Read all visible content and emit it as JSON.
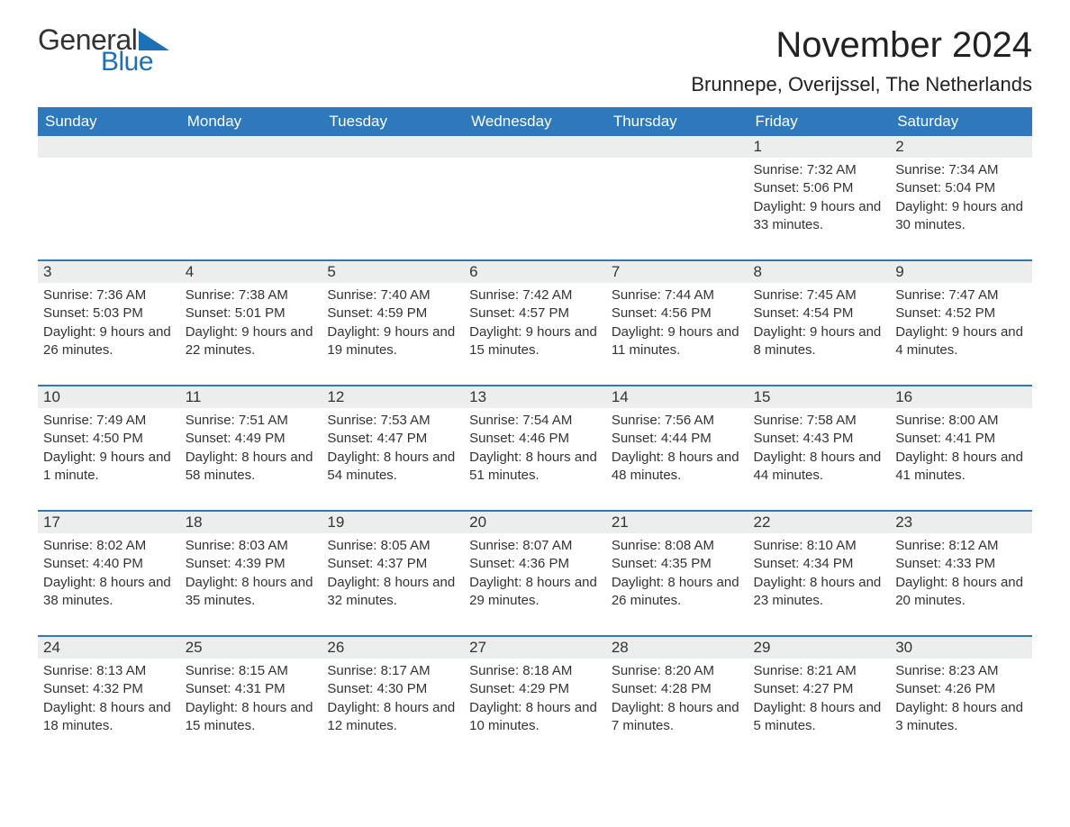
{
  "logo": {
    "text1": "General",
    "text2": "Blue",
    "tri_color": "#1d6fb8"
  },
  "header": {
    "month_title": "November 2024",
    "location": "Brunnepe, Overijssel, The Netherlands"
  },
  "colors": {
    "header_bg": "#2f78bb",
    "header_text": "#ffffff",
    "daynum_bg": "#eceded",
    "rule": "#2f78bb",
    "text": "#333333"
  },
  "daynames": [
    "Sunday",
    "Monday",
    "Tuesday",
    "Wednesday",
    "Thursday",
    "Friday",
    "Saturday"
  ],
  "layout": {
    "first_weekday_index": 5,
    "days_in_month": 30
  },
  "days": {
    "1": {
      "sunrise": "7:32 AM",
      "sunset": "5:06 PM",
      "daylight": "9 hours and 33 minutes."
    },
    "2": {
      "sunrise": "7:34 AM",
      "sunset": "5:04 PM",
      "daylight": "9 hours and 30 minutes."
    },
    "3": {
      "sunrise": "7:36 AM",
      "sunset": "5:03 PM",
      "daylight": "9 hours and 26 minutes."
    },
    "4": {
      "sunrise": "7:38 AM",
      "sunset": "5:01 PM",
      "daylight": "9 hours and 22 minutes."
    },
    "5": {
      "sunrise": "7:40 AM",
      "sunset": "4:59 PM",
      "daylight": "9 hours and 19 minutes."
    },
    "6": {
      "sunrise": "7:42 AM",
      "sunset": "4:57 PM",
      "daylight": "9 hours and 15 minutes."
    },
    "7": {
      "sunrise": "7:44 AM",
      "sunset": "4:56 PM",
      "daylight": "9 hours and 11 minutes."
    },
    "8": {
      "sunrise": "7:45 AM",
      "sunset": "4:54 PM",
      "daylight": "9 hours and 8 minutes."
    },
    "9": {
      "sunrise": "7:47 AM",
      "sunset": "4:52 PM",
      "daylight": "9 hours and 4 minutes."
    },
    "10": {
      "sunrise": "7:49 AM",
      "sunset": "4:50 PM",
      "daylight": "9 hours and 1 minute."
    },
    "11": {
      "sunrise": "7:51 AM",
      "sunset": "4:49 PM",
      "daylight": "8 hours and 58 minutes."
    },
    "12": {
      "sunrise": "7:53 AM",
      "sunset": "4:47 PM",
      "daylight": "8 hours and 54 minutes."
    },
    "13": {
      "sunrise": "7:54 AM",
      "sunset": "4:46 PM",
      "daylight": "8 hours and 51 minutes."
    },
    "14": {
      "sunrise": "7:56 AM",
      "sunset": "4:44 PM",
      "daylight": "8 hours and 48 minutes."
    },
    "15": {
      "sunrise": "7:58 AM",
      "sunset": "4:43 PM",
      "daylight": "8 hours and 44 minutes."
    },
    "16": {
      "sunrise": "8:00 AM",
      "sunset": "4:41 PM",
      "daylight": "8 hours and 41 minutes."
    },
    "17": {
      "sunrise": "8:02 AM",
      "sunset": "4:40 PM",
      "daylight": "8 hours and 38 minutes."
    },
    "18": {
      "sunrise": "8:03 AM",
      "sunset": "4:39 PM",
      "daylight": "8 hours and 35 minutes."
    },
    "19": {
      "sunrise": "8:05 AM",
      "sunset": "4:37 PM",
      "daylight": "8 hours and 32 minutes."
    },
    "20": {
      "sunrise": "8:07 AM",
      "sunset": "4:36 PM",
      "daylight": "8 hours and 29 minutes."
    },
    "21": {
      "sunrise": "8:08 AM",
      "sunset": "4:35 PM",
      "daylight": "8 hours and 26 minutes."
    },
    "22": {
      "sunrise": "8:10 AM",
      "sunset": "4:34 PM",
      "daylight": "8 hours and 23 minutes."
    },
    "23": {
      "sunrise": "8:12 AM",
      "sunset": "4:33 PM",
      "daylight": "8 hours and 20 minutes."
    },
    "24": {
      "sunrise": "8:13 AM",
      "sunset": "4:32 PM",
      "daylight": "8 hours and 18 minutes."
    },
    "25": {
      "sunrise": "8:15 AM",
      "sunset": "4:31 PM",
      "daylight": "8 hours and 15 minutes."
    },
    "26": {
      "sunrise": "8:17 AM",
      "sunset": "4:30 PM",
      "daylight": "8 hours and 12 minutes."
    },
    "27": {
      "sunrise": "8:18 AM",
      "sunset": "4:29 PM",
      "daylight": "8 hours and 10 minutes."
    },
    "28": {
      "sunrise": "8:20 AM",
      "sunset": "4:28 PM",
      "daylight": "8 hours and 7 minutes."
    },
    "29": {
      "sunrise": "8:21 AM",
      "sunset": "4:27 PM",
      "daylight": "8 hours and 5 minutes."
    },
    "30": {
      "sunrise": "8:23 AM",
      "sunset": "4:26 PM",
      "daylight": "8 hours and 3 minutes."
    }
  },
  "labels": {
    "sunrise": "Sunrise: ",
    "sunset": "Sunset: ",
    "daylight": "Daylight: "
  }
}
